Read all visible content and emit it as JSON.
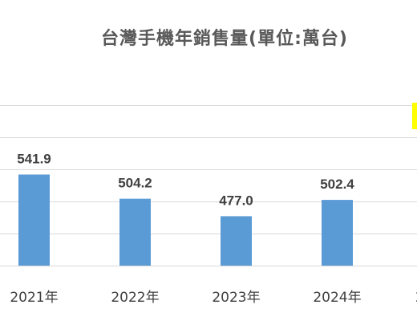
{
  "chart_data": {
    "type": "bar",
    "title": "台灣手機年銷售量(單位:萬台)",
    "categories": [
      "2021年",
      "2022年",
      "2023年",
      "2024年",
      "2"
    ],
    "values": [
      541.9,
      504.2,
      477.0,
      502.4,
      null
    ],
    "data_labels": [
      "541.9",
      "504.2",
      "477.0",
      "502.4",
      ""
    ],
    "ylim": [
      400,
      550
    ],
    "grid": true,
    "bar_color": "#5b9bd5",
    "highlight_color": "#ffff00",
    "xlabel": "",
    "ylabel": ""
  }
}
